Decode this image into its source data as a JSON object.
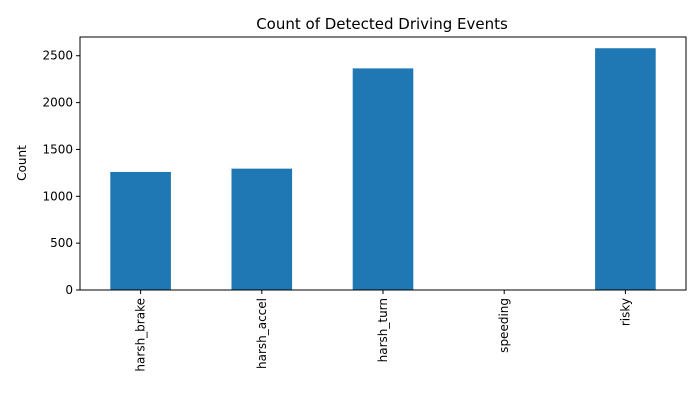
{
  "chart_data": {
    "type": "bar",
    "title": "Count of Detected Driving Events",
    "xlabel": "",
    "ylabel": "Count",
    "categories": [
      "harsh_brake",
      "harsh_accel",
      "harsh_turn",
      "speeding",
      "risky"
    ],
    "values": [
      1260,
      1295,
      2365,
      0,
      2580
    ],
    "ylim": [
      0,
      2700
    ],
    "yticks": [
      0,
      500,
      1000,
      1500,
      2000,
      2500
    ],
    "grid": false,
    "legend": "none",
    "bar_color": "#1f77b4",
    "x_tick_rotation": "vertical"
  }
}
